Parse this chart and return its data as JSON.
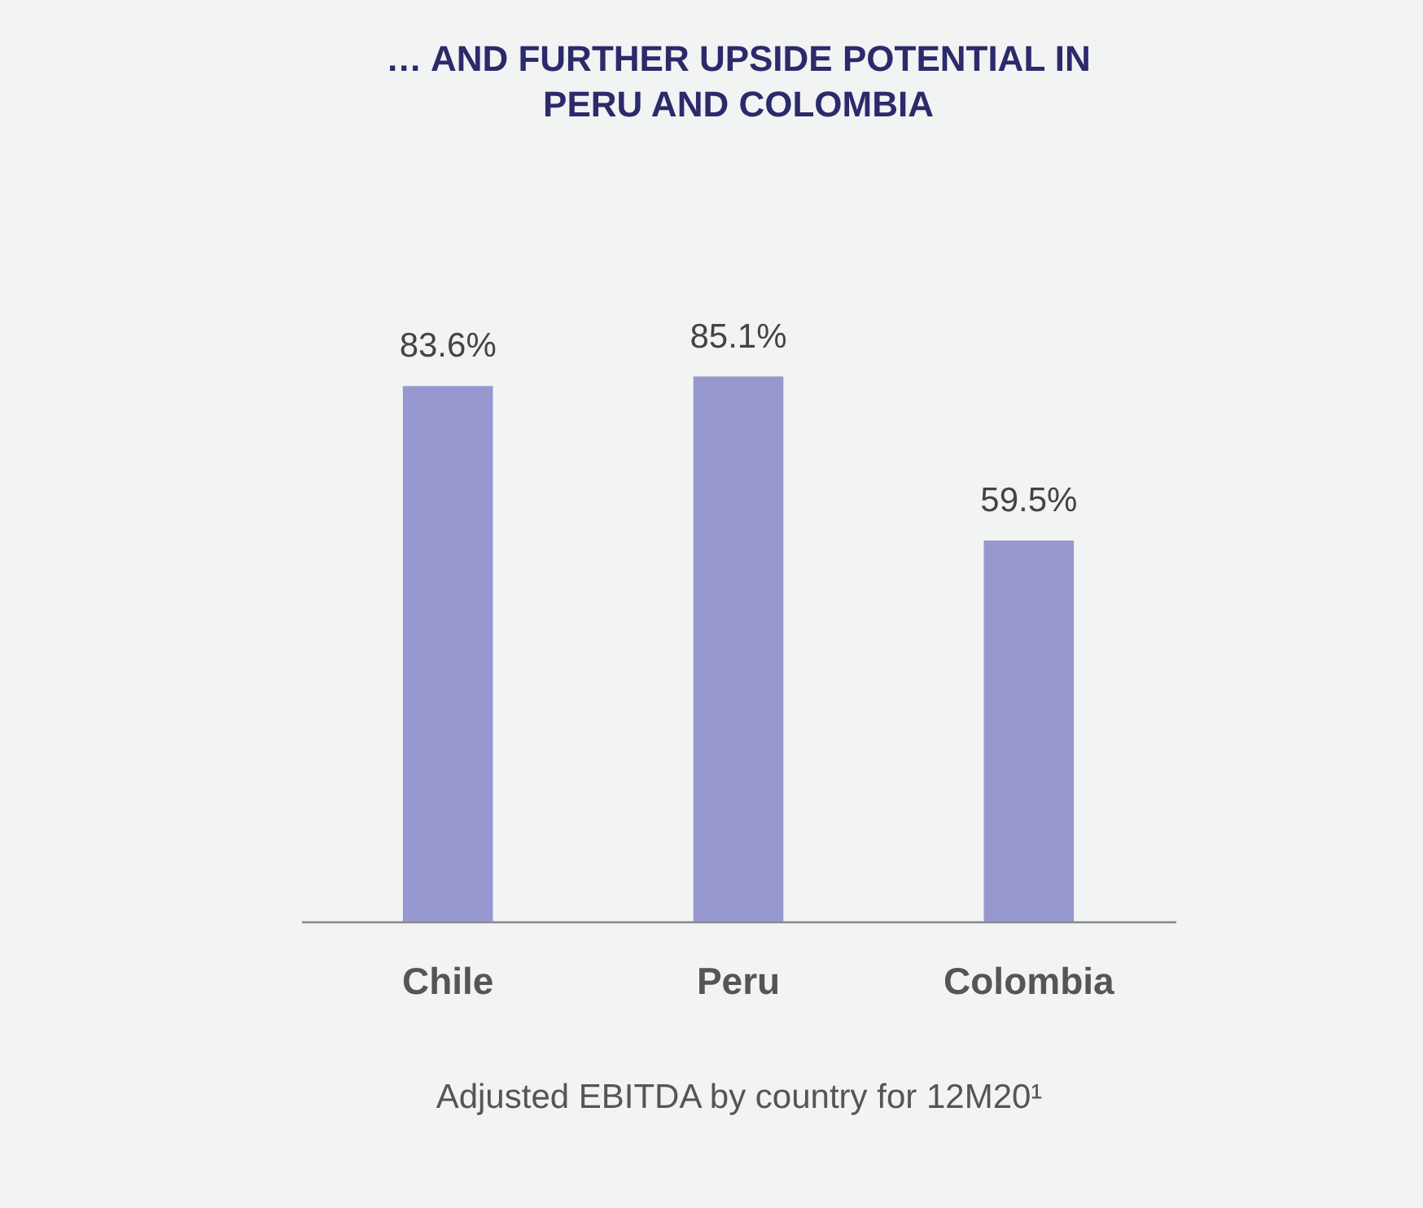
{
  "chart_data": {
    "type": "bar",
    "title": "… AND FURTHER UPSIDE POTENTIAL IN PERU AND COLOMBIA",
    "xlabel": "Adjusted EBITDA by country for 12M20¹",
    "categories": [
      "Chile",
      "Peru",
      "Colombia"
    ],
    "values": [
      83.6,
      85.1,
      59.5
    ],
    "value_labels": [
      "83.6%",
      "85.1%",
      "59.5%"
    ],
    "color": "#9898d0",
    "tick_labels": "x",
    "grid": false
  }
}
